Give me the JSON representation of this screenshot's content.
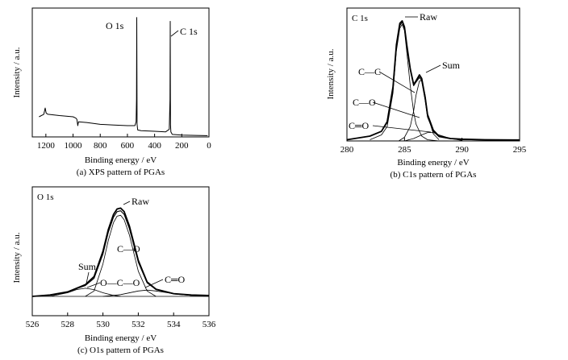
{
  "chart_data": [
    {
      "type": "line",
      "panel_label": "(a) XPS pattern of PGAs",
      "xlabel": "Binding energy / eV",
      "ylabel": "Intensity / a.u.",
      "xlim": [
        1300,
        0
      ],
      "x_reversed": true,
      "xticks": [
        "1200",
        "1000",
        "800",
        "600",
        "400",
        "200",
        "0"
      ],
      "y_ticks_shown": false,
      "annotations": [
        {
          "text": "O 1s",
          "x": 531
        },
        {
          "text": "C 1s",
          "x": 285
        }
      ],
      "series": [
        {
          "x": [
            1250,
            1215,
            1205,
            1198,
            1185,
            1100,
            1000,
            980,
            972,
            965,
            960,
            900,
            800,
            700,
            600,
            545,
            536,
            533,
            531,
            529,
            524,
            500,
            400,
            320,
            292,
            287,
            285,
            283,
            280,
            270,
            200,
            100,
            10
          ],
          "y": [
            0.16,
            0.18,
            0.23,
            0.19,
            0.18,
            0.17,
            0.16,
            0.15,
            0.14,
            0.09,
            0.12,
            0.115,
            0.1,
            0.095,
            0.09,
            0.09,
            0.12,
            0.3,
            0.95,
            0.1,
            0.055,
            0.05,
            0.045,
            0.04,
            0.06,
            0.3,
            0.92,
            0.1,
            0.04,
            0.02,
            0.015,
            0.012,
            0.01
          ]
        }
      ]
    },
    {
      "type": "line",
      "panel_label": "(b) C1s pattern of PGAs",
      "title": "C 1s",
      "xlabel": "Binding energy / eV",
      "ylabel": "Intensity / a.u.",
      "xlim": [
        280,
        295
      ],
      "xticks": [
        "280",
        "285",
        "290",
        "295"
      ],
      "y_ticks_shown": false,
      "series": [
        {
          "name": "Raw",
          "x": [
            280,
            282,
            283,
            283.5,
            284,
            284.3,
            284.6,
            284.8,
            285.0,
            285.2,
            285.5,
            285.8,
            286.0,
            286.3,
            286.5,
            286.8,
            287.0,
            287.5,
            288,
            289,
            290,
            292,
            295
          ],
          "y": [
            0.01,
            0.04,
            0.08,
            0.16,
            0.45,
            0.8,
            0.98,
            1.0,
            0.95,
            0.8,
            0.6,
            0.47,
            0.5,
            0.55,
            0.52,
            0.36,
            0.22,
            0.09,
            0.04,
            0.02,
            0.015,
            0.01,
            0.008
          ]
        },
        {
          "name": "Sum",
          "x": [
            280,
            282,
            283,
            283.5,
            284,
            284.3,
            284.6,
            284.8,
            285.0,
            285.2,
            285.5,
            285.8,
            286.0,
            286.3,
            286.5,
            286.8,
            287.0,
            287.5,
            288,
            289,
            290,
            292,
            295
          ],
          "y": [
            0.01,
            0.04,
            0.08,
            0.15,
            0.43,
            0.78,
            0.96,
            0.99,
            0.94,
            0.79,
            0.59,
            0.46,
            0.49,
            0.53,
            0.5,
            0.34,
            0.2,
            0.08,
            0.035,
            0.018,
            0.012,
            0.008,
            0.006
          ]
        },
        {
          "name": "C—C",
          "x": [
            282,
            283,
            283.5,
            284,
            284.3,
            284.6,
            284.8,
            285.0,
            285.2,
            285.5,
            285.8,
            286.0,
            286.5,
            287,
            288
          ],
          "y": [
            0.01,
            0.05,
            0.12,
            0.4,
            0.75,
            0.94,
            0.97,
            0.92,
            0.74,
            0.46,
            0.24,
            0.14,
            0.04,
            0.01,
            0.0
          ]
        },
        {
          "name": "C—O",
          "x": [
            284.5,
            285.0,
            285.5,
            285.8,
            286.0,
            286.3,
            286.5,
            286.8,
            287.0,
            287.5,
            288
          ],
          "y": [
            0.0,
            0.03,
            0.12,
            0.25,
            0.38,
            0.5,
            0.5,
            0.38,
            0.22,
            0.06,
            0.01
          ]
        },
        {
          "name": "C═O",
          "x": [
            285.0,
            285.8,
            286.5,
            287.0,
            287.5,
            288.0,
            289.0,
            290.0
          ],
          "y": [
            0.0,
            0.02,
            0.05,
            0.07,
            0.07,
            0.05,
            0.02,
            0.005
          ]
        }
      ],
      "annotations": [
        {
          "text": "Raw"
        },
        {
          "text": "Sum"
        },
        {
          "text": "C—C"
        },
        {
          "text": "C—O"
        },
        {
          "text": "C═O"
        }
      ]
    },
    {
      "type": "line",
      "panel_label": "(c) O1s pattern of PGAs",
      "title": "O 1s",
      "xlabel": "Binding energy / eV",
      "ylabel": "Intensity / a.u.",
      "xlim": [
        526,
        536
      ],
      "xticks": [
        "526",
        "528",
        "530",
        "532",
        "534",
        "536"
      ],
      "y_ticks_shown": false,
      "series": [
        {
          "name": "Raw",
          "x": [
            526,
            527,
            528,
            528.5,
            529,
            529.5,
            530,
            530.3,
            530.6,
            530.8,
            531.0,
            531.2,
            531.5,
            532.0,
            532.5,
            533,
            534,
            535,
            536
          ],
          "y": [
            0.0,
            0.015,
            0.05,
            0.09,
            0.13,
            0.22,
            0.5,
            0.74,
            0.91,
            0.97,
            0.98,
            0.94,
            0.78,
            0.4,
            0.16,
            0.08,
            0.03,
            0.015,
            0.01
          ]
        },
        {
          "name": "Sum",
          "x": [
            526,
            527,
            528,
            528.5,
            529,
            529.5,
            530,
            530.3,
            530.6,
            530.8,
            531.0,
            531.2,
            531.5,
            532.0,
            532.5,
            533,
            534,
            535,
            536
          ],
          "y": [
            0.0,
            0.012,
            0.045,
            0.085,
            0.12,
            0.2,
            0.47,
            0.71,
            0.88,
            0.94,
            0.95,
            0.91,
            0.75,
            0.38,
            0.15,
            0.075,
            0.028,
            0.012,
            0.008
          ]
        },
        {
          "name": "C—O",
          "x": [
            529,
            529.5,
            530,
            530.3,
            530.6,
            530.8,
            531.0,
            531.2,
            531.5,
            532.0,
            532.5,
            533
          ],
          "y": [
            0.0,
            0.06,
            0.36,
            0.62,
            0.82,
            0.89,
            0.9,
            0.85,
            0.68,
            0.28,
            0.06,
            0.0
          ]
        },
        {
          "name": "O—C—O",
          "x": [
            527,
            528,
            528.5,
            529,
            529.5,
            530,
            530.5,
            531
          ],
          "y": [
            0.0,
            0.04,
            0.075,
            0.09,
            0.075,
            0.04,
            0.015,
            0.0
          ]
        },
        {
          "name": "C═O",
          "x": [
            530,
            531,
            532,
            532.5,
            533,
            534,
            535,
            536
          ],
          "y": [
            0.0,
            0.02,
            0.06,
            0.07,
            0.06,
            0.03,
            0.01,
            0.0
          ]
        }
      ],
      "annotations": [
        {
          "text": "Raw"
        },
        {
          "text": "C—O"
        },
        {
          "text": "Sum"
        },
        {
          "text": "O—C—O"
        },
        {
          "text": "C═O"
        }
      ]
    }
  ]
}
